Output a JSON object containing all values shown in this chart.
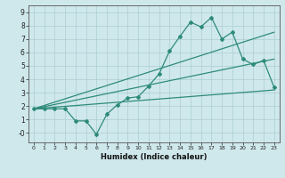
{
  "title": "",
  "xlabel": "Humidex (Indice chaleur)",
  "xlim": [
    -0.5,
    23.5
  ],
  "ylim": [
    -0.7,
    9.5
  ],
  "xticks": [
    0,
    1,
    2,
    3,
    4,
    5,
    6,
    7,
    8,
    9,
    10,
    11,
    12,
    13,
    14,
    15,
    16,
    17,
    18,
    19,
    20,
    21,
    22,
    23
  ],
  "yticks": [
    0,
    1,
    2,
    3,
    4,
    5,
    6,
    7,
    8,
    9
  ],
  "ytick_labels": [
    "0",
    "1",
    "2",
    "3",
    "4",
    "5",
    "6",
    "7",
    "8",
    "9"
  ],
  "bg_color": "#cfe8ec",
  "line_color": "#2e8b7a",
  "grid_color": "#aacdd4",
  "main_line_x": [
    0,
    1,
    2,
    3,
    4,
    5,
    6,
    7,
    8,
    9,
    10,
    11,
    12,
    13,
    14,
    15,
    16,
    17,
    18,
    19,
    20,
    21,
    22,
    23
  ],
  "main_line_y": [
    1.8,
    1.8,
    1.8,
    1.8,
    0.9,
    0.9,
    -0.1,
    1.4,
    2.1,
    2.6,
    2.7,
    3.5,
    4.4,
    6.1,
    7.2,
    8.25,
    7.9,
    8.6,
    7.0,
    7.5,
    5.5,
    5.1,
    5.4,
    3.4
  ],
  "upper_line_x": [
    0,
    23
  ],
  "upper_line_y": [
    1.8,
    7.5
  ],
  "lower_line_x": [
    0,
    23
  ],
  "lower_line_y": [
    1.8,
    3.2
  ],
  "mid_line_x": [
    0,
    23
  ],
  "mid_line_y": [
    1.8,
    5.5
  ]
}
